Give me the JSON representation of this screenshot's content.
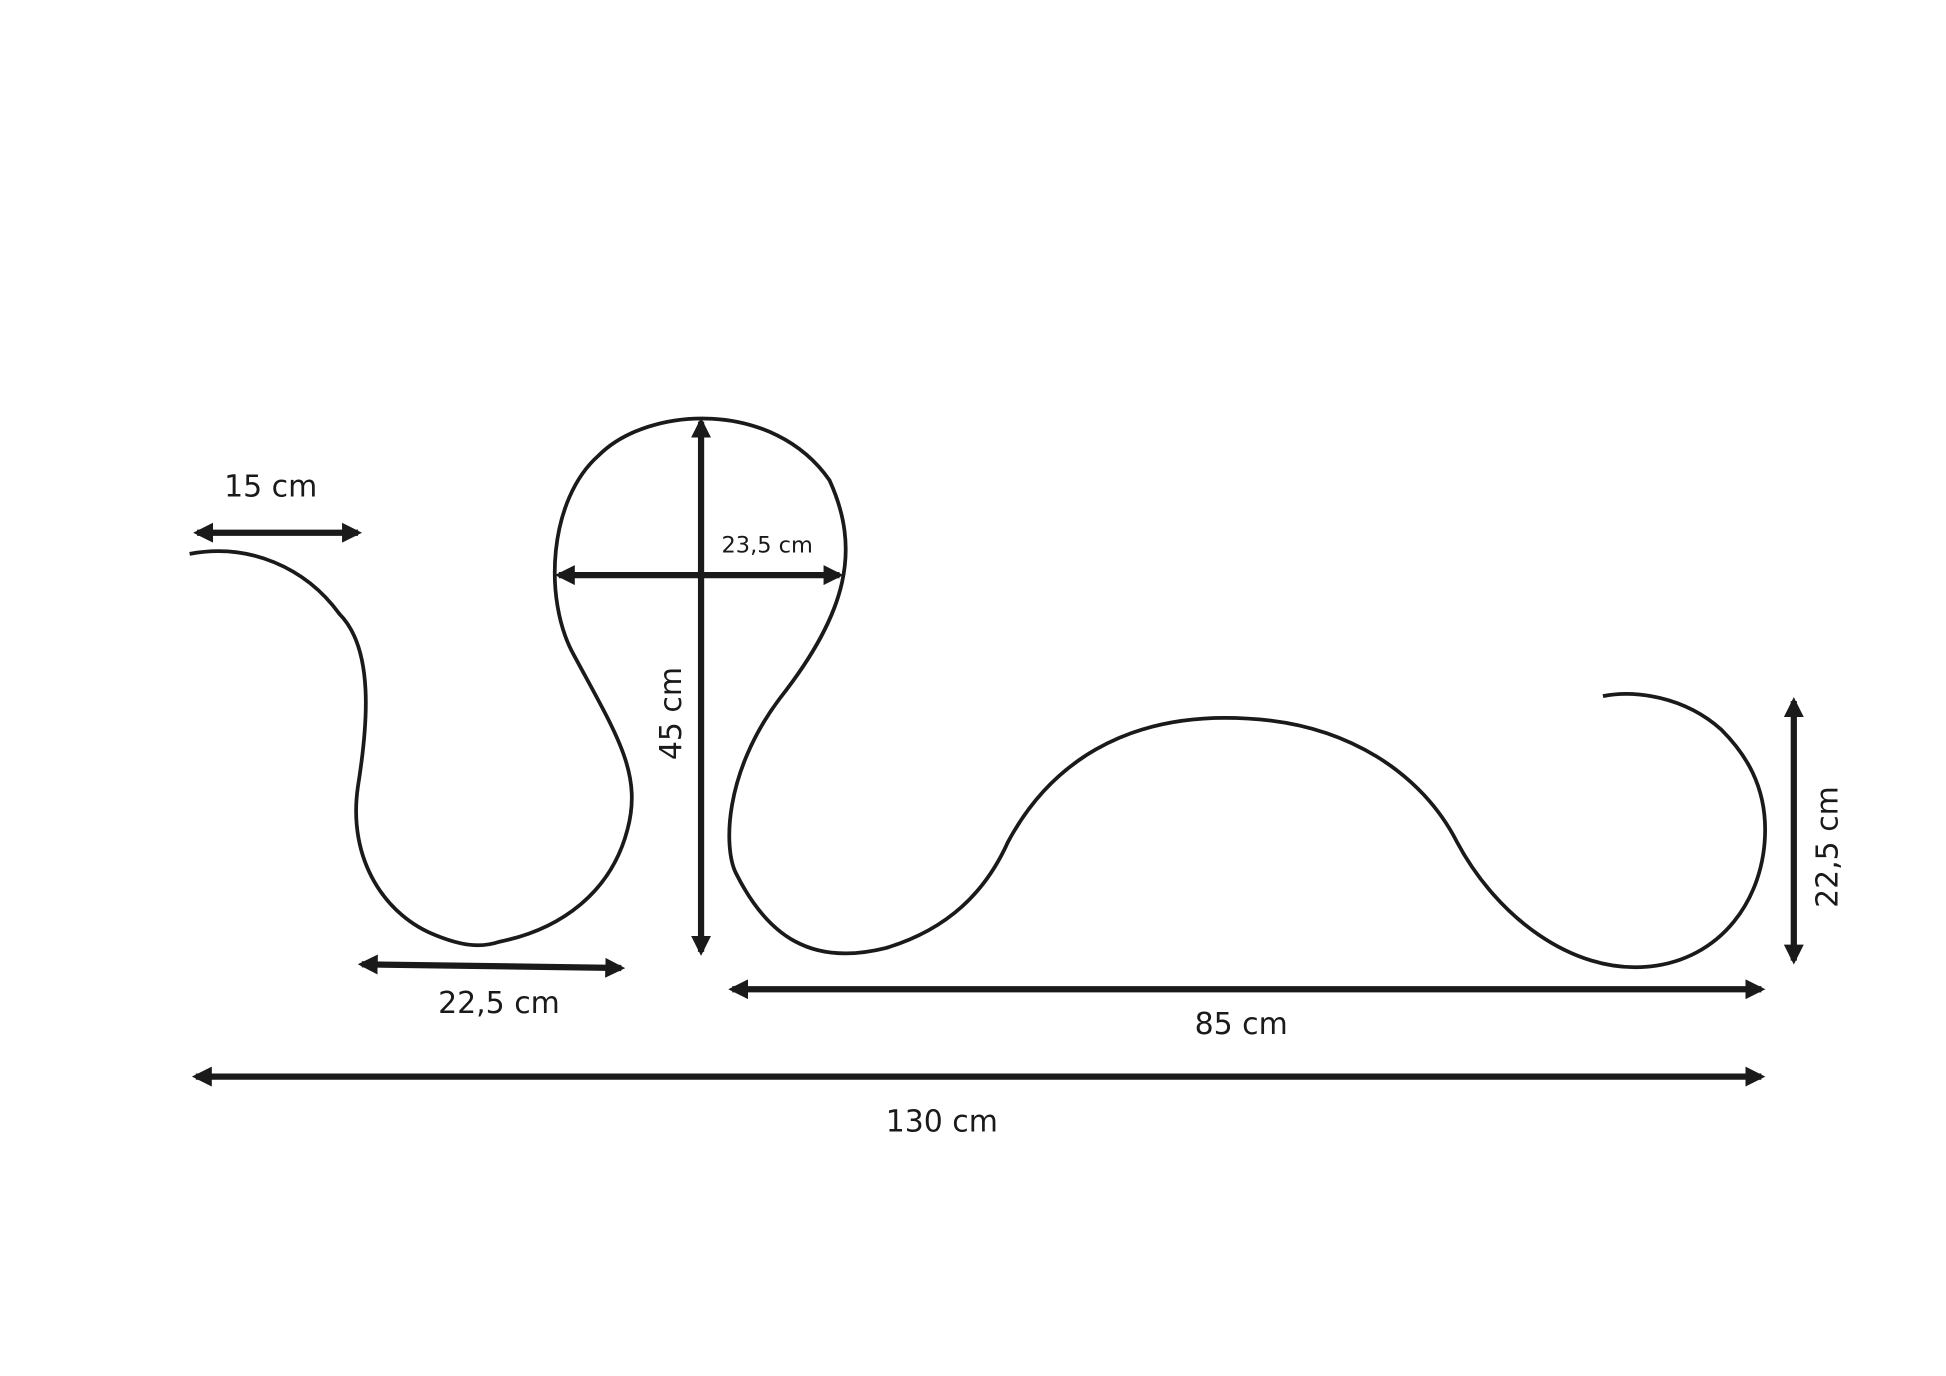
{
  "colors": {
    "line": "#1a1a1a",
    "background": "#ffffff"
  },
  "dimensions": {
    "top_left_width": "15 cm",
    "loop_width": "23,5 cm",
    "loop_height": "45 cm",
    "bottom_left_width": "22,5 cm",
    "right_width": "85 cm",
    "overall_width": "130 cm",
    "right_height": "22,5 cm"
  }
}
